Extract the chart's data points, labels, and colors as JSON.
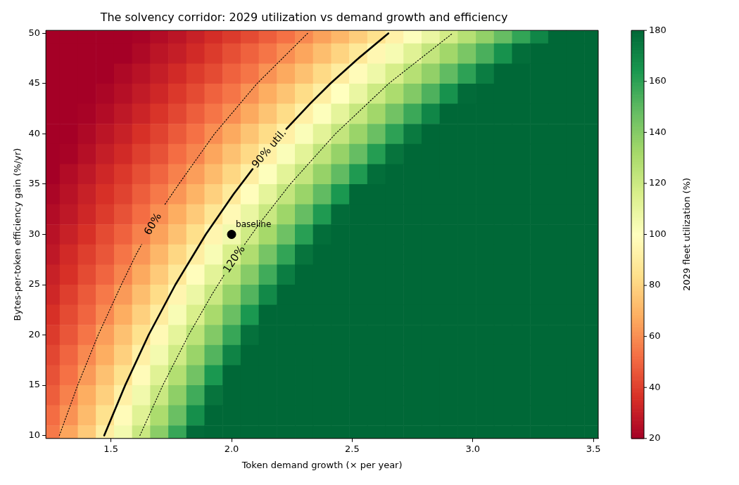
{
  "chart_data": {
    "type": "heatmap",
    "title": "The solvency corridor: 2029 utilization vs demand growth and efficiency",
    "xlabel": "Token demand growth (× per year)",
    "ylabel": "Bytes-per-token efficiency gain (%/yr)",
    "clabel": "2029 fleet utilization (%)",
    "x": [
      1.25,
      1.325,
      1.4,
      1.475,
      1.55,
      1.625,
      1.7,
      1.775,
      1.85,
      1.925,
      2,
      2.075,
      2.15,
      2.225,
      2.3,
      2.375,
      2.45,
      2.525,
      2.6,
      2.675,
      2.75,
      2.825,
      2.9,
      2.975,
      3.05,
      3.125,
      3.2,
      3.275,
      3.35,
      3.425,
      3.5
    ],
    "y": [
      50,
      48,
      46,
      44,
      42,
      40,
      38,
      36,
      34,
      32,
      30,
      28,
      26,
      24,
      22,
      20,
      18,
      16,
      14,
      12,
      10
    ],
    "cells": [
      [
        20,
        20,
        20,
        20,
        20,
        21,
        24,
        27,
        31,
        35,
        39,
        43,
        48,
        53,
        59,
        65,
        71,
        78,
        85,
        93,
        101,
        109,
        118,
        127,
        137,
        148,
        159,
        170,
        180,
        180,
        180
      ],
      [
        20,
        20,
        20,
        20,
        20,
        23,
        27,
        30,
        34,
        39,
        44,
        49,
        54,
        60,
        66,
        73,
        80,
        88,
        96,
        104,
        113,
        123,
        133,
        143,
        154,
        166,
        178,
        180,
        180,
        180,
        180
      ],
      [
        20,
        20,
        20,
        20,
        23,
        26,
        30,
        34,
        39,
        43,
        49,
        54,
        61,
        67,
        74,
        82,
        90,
        98,
        107,
        117,
        127,
        137,
        149,
        160,
        173,
        180,
        180,
        180,
        180,
        180,
        180
      ],
      [
        20,
        20,
        20,
        22,
        25,
        29,
        33,
        38,
        43,
        49,
        54,
        61,
        68,
        75,
        83,
        91,
        100,
        109,
        120,
        130,
        141,
        153,
        166,
        179,
        180,
        180,
        180,
        180,
        180,
        180,
        180
      ],
      [
        20,
        20,
        21,
        24,
        28,
        32,
        37,
        42,
        48,
        54,
        60,
        67,
        75,
        83,
        92,
        101,
        111,
        122,
        133,
        145,
        157,
        170,
        180,
        180,
        180,
        180,
        180,
        180,
        180,
        180,
        180
      ],
      [
        20,
        20,
        23,
        27,
        31,
        36,
        41,
        47,
        53,
        60,
        67,
        75,
        83,
        92,
        102,
        112,
        123,
        135,
        147,
        160,
        174,
        180,
        180,
        180,
        180,
        180,
        180,
        180,
        180,
        180,
        180
      ],
      [
        20,
        21,
        25,
        30,
        34,
        40,
        45,
        52,
        58,
        66,
        74,
        82,
        92,
        102,
        112,
        124,
        136,
        148,
        162,
        176,
        180,
        180,
        180,
        180,
        180,
        180,
        180,
        180,
        180,
        180,
        180
      ],
      [
        20,
        24,
        28,
        33,
        38,
        44,
        50,
        57,
        64,
        72,
        81,
        91,
        101,
        112,
        123,
        136,
        149,
        163,
        178,
        180,
        180,
        180,
        180,
        180,
        180,
        180,
        180,
        180,
        180,
        180,
        180
      ],
      [
        22,
        26,
        31,
        36,
        41,
        48,
        55,
        62,
        70,
        79,
        89,
        99,
        111,
        123,
        135,
        149,
        164,
        180,
        180,
        180,
        180,
        180,
        180,
        180,
        180,
        180,
        180,
        180,
        180,
        180,
        180
      ],
      [
        24,
        28,
        33,
        39,
        45,
        52,
        60,
        68,
        77,
        87,
        97,
        109,
        121,
        134,
        148,
        163,
        179,
        180,
        180,
        180,
        180,
        180,
        180,
        180,
        180,
        180,
        180,
        180,
        180,
        180,
        180
      ],
      [
        26,
        31,
        36,
        43,
        49,
        57,
        65,
        74,
        84,
        95,
        106,
        119,
        132,
        146,
        161,
        178,
        180,
        180,
        180,
        180,
        180,
        180,
        180,
        180,
        180,
        180,
        180,
        180,
        180,
        180,
        180
      ],
      [
        28,
        34,
        40,
        46,
        54,
        62,
        71,
        81,
        91,
        103,
        116,
        129,
        144,
        159,
        176,
        180,
        180,
        180,
        180,
        180,
        180,
        180,
        180,
        180,
        180,
        180,
        180,
        180,
        180,
        180,
        180
      ],
      [
        31,
        36,
        43,
        50,
        58,
        67,
        77,
        88,
        99,
        112,
        125,
        140,
        156,
        173,
        180,
        180,
        180,
        180,
        180,
        180,
        180,
        180,
        180,
        180,
        180,
        180,
        180,
        180,
        180,
        180,
        180
      ],
      [
        33,
        40,
        47,
        55,
        63,
        73,
        83,
        95,
        108,
        121,
        136,
        152,
        169,
        180,
        180,
        180,
        180,
        180,
        180,
        180,
        180,
        180,
        180,
        180,
        180,
        180,
        180,
        180,
        180,
        180,
        180
      ],
      [
        36,
        43,
        50,
        59,
        68,
        79,
        90,
        103,
        116,
        131,
        147,
        164,
        180,
        180,
        180,
        180,
        180,
        180,
        180,
        180,
        180,
        180,
        180,
        180,
        180,
        180,
        180,
        180,
        180,
        180,
        180
      ],
      [
        39,
        46,
        54,
        64,
        74,
        85,
        97,
        111,
        125,
        141,
        158,
        177,
        180,
        180,
        180,
        180,
        180,
        180,
        180,
        180,
        180,
        180,
        180,
        180,
        180,
        180,
        180,
        180,
        180,
        180,
        180
      ],
      [
        42,
        50,
        59,
        68,
        79,
        92,
        105,
        119,
        135,
        152,
        171,
        180,
        180,
        180,
        180,
        180,
        180,
        180,
        180,
        180,
        180,
        180,
        180,
        180,
        180,
        180,
        180,
        180,
        180,
        180,
        180
      ],
      [
        45,
        53,
        63,
        74,
        85,
        98,
        113,
        128,
        145,
        164,
        180,
        180,
        180,
        180,
        180,
        180,
        180,
        180,
        180,
        180,
        180,
        180,
        180,
        180,
        180,
        180,
        180,
        180,
        180,
        180,
        180
      ],
      [
        48,
        57,
        68,
        79,
        92,
        106,
        121,
        138,
        156,
        176,
        180,
        180,
        180,
        180,
        180,
        180,
        180,
        180,
        180,
        180,
        180,
        180,
        180,
        180,
        180,
        180,
        180,
        180,
        180,
        180,
        180
      ],
      [
        52,
        61,
        72,
        85,
        98,
        113,
        130,
        147,
        167,
        180,
        180,
        180,
        180,
        180,
        180,
        180,
        180,
        180,
        180,
        180,
        180,
        180,
        180,
        180,
        180,
        180,
        180,
        180,
        180,
        180,
        180
      ],
      [
        55,
        66,
        77,
        91,
        105,
        121,
        139,
        158,
        179,
        180,
        180,
        180,
        180,
        180,
        180,
        180,
        180,
        180,
        180,
        180,
        180,
        180,
        180,
        180,
        180,
        180,
        180,
        180,
        180,
        180,
        180
      ]
    ],
    "clim": [
      20,
      180
    ],
    "cticks": [
      20,
      40,
      60,
      80,
      100,
      120,
      140,
      160,
      180
    ],
    "xlim": [
      1.23,
      3.52
    ],
    "ylim": [
      9.7,
      50.3
    ],
    "xticks": [
      1.5,
      {
        "value": 2,
        "label": "2.0"
      },
      2.5,
      {
        "value": 3,
        "label": "3.0"
      },
      3.5
    ],
    "yticks": [
      10,
      15,
      20,
      25,
      30,
      35,
      40,
      45,
      50
    ],
    "grid": false,
    "legend": false,
    "series": [
      {
        "type": "line",
        "name": "60%",
        "x": [
          1.286,
          1.362,
          1.447,
          1.543,
          1.604,
          1.627,
          1.68,
          1.724,
          1.781,
          1.929,
          2.105,
          2.315
        ],
        "values": [
          10,
          15,
          20,
          25,
          28,
          29,
          null,
          33,
          35,
          40,
          45,
          50
        ],
        "color": "#000000",
        "line_style": "dotted"
      },
      {
        "type": "line",
        "name": "90% util.",
        "x": [
          1.472,
          1.559,
          1.656,
          1.767,
          1.893,
          2.008,
          2.087,
          2.16,
          2.227,
          2.325,
          2.409,
          2.52,
          2.65
        ],
        "values": [
          10,
          15,
          20,
          25,
          30,
          34,
          36.5,
          null,
          40.5,
          43,
          45,
          47.4,
          50
        ],
        "color": "#000000",
        "line_style": "solid"
      },
      {
        "type": "line",
        "name": "120%",
        "x": [
          1.62,
          1.715,
          1.822,
          1.918,
          1.97,
          2.01,
          2.054,
          2.113,
          2.243,
          2.43,
          2.651,
          2.916
        ],
        "values": [
          10,
          15,
          20,
          24,
          26,
          null,
          29,
          31,
          35,
          40,
          45,
          50
        ],
        "color": "#000000",
        "line_style": "dotted"
      },
      {
        "type": "scatter",
        "x": [
          2.0
        ],
        "values": [
          30
        ],
        "color": "#000000",
        "marker": "circle"
      }
    ],
    "annotations": [
      {
        "text": "baseline",
        "x": 2.0,
        "y": 30
      }
    ]
  }
}
